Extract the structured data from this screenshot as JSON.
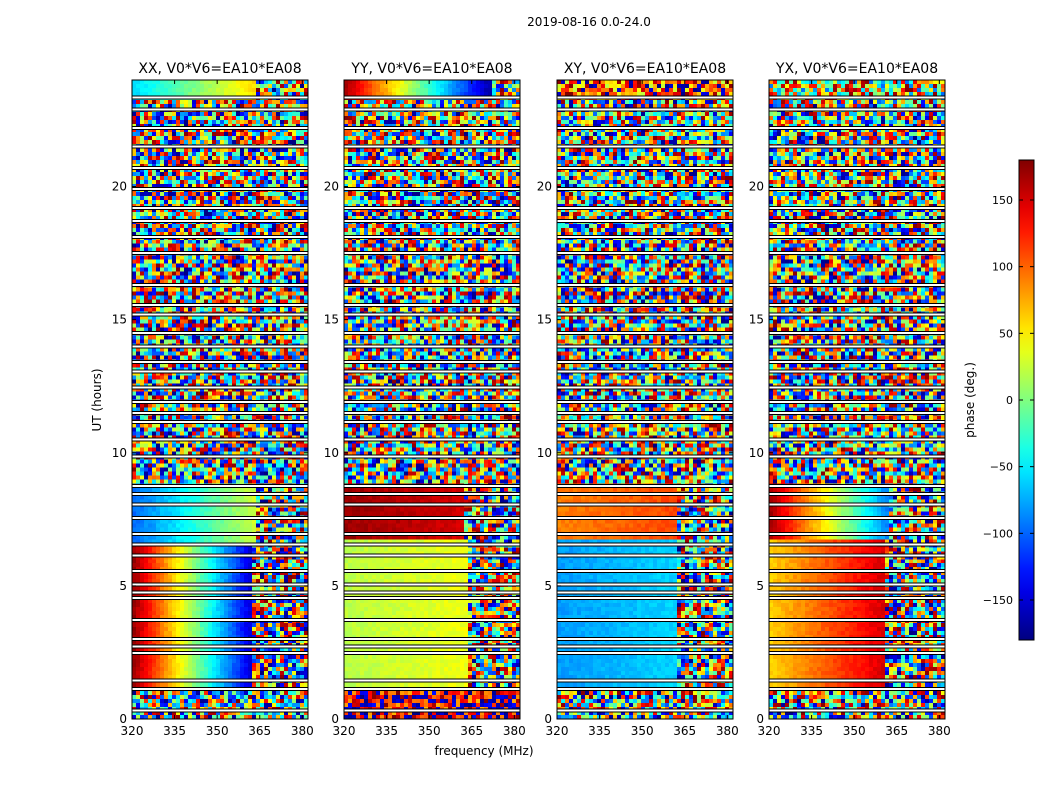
{
  "figure": {
    "suptitle": "2019-08-16 0.0-24.0",
    "xlabel": "frequency (MHz)",
    "ylabel": "UT (hours)"
  },
  "chart_data": {
    "type": "heatmap",
    "colormap": "jet",
    "x_range": [
      320,
      382
    ],
    "y_range": [
      0,
      24
    ],
    "x_ticks": [
      320,
      335,
      350,
      365,
      380
    ],
    "x_tick_labels": [
      "320",
      "335",
      "350",
      "365",
      "380"
    ],
    "y_ticks": [
      0,
      5,
      10,
      15,
      20
    ],
    "y_tick_labels": [
      "0",
      "5",
      "10",
      "15",
      "20"
    ],
    "colorbar": {
      "label": "phase (deg.)",
      "range": [
        -180,
        180
      ],
      "ticks": [
        -150,
        -100,
        -50,
        0,
        50,
        100,
        150
      ],
      "tick_labels": [
        "−150",
        "−100",
        "−50",
        "0",
        "50",
        "100",
        "150"
      ]
    },
    "flagged_hours": [
      0.32,
      1.12,
      1.45,
      2.48,
      2.72,
      3.0,
      3.72,
      4.55,
      4.75,
      5.05,
      5.55,
      6.15,
      6.55,
      6.95,
      7.55,
      8.05,
      8.45,
      8.75,
      9.85,
      10.5,
      11.15,
      11.5,
      11.9,
      12.45,
      13.05,
      13.4,
      14.0,
      14.5,
      15.2,
      15.55,
      16.3,
      17.5,
      18.1,
      18.7,
      19.2,
      19.9,
      20.7,
      21.5,
      22.2,
      22.9,
      23.35
    ],
    "panels": [
      {
        "title": "XX, V0*V6=EA10*EA08",
        "segments": [
          {
            "from": 0,
            "to": 1.2,
            "mode": "noise",
            "center": 0,
            "spread": 180
          },
          {
            "from": 1.2,
            "to": 6.6,
            "mode": "gradient",
            "phase_at_320": 175,
            "phase_at_362": -150,
            "noisy_from": 362
          },
          {
            "from": 6.6,
            "to": 8.9,
            "mode": "gradient",
            "phase_at_320": -100,
            "phase_at_362": 30,
            "noisy_from": 364
          },
          {
            "from": 8.9,
            "to": 23.3,
            "mode": "noise",
            "center": 0,
            "spread": 180
          },
          {
            "from": 23.3,
            "to": 24,
            "mode": "gradient",
            "phase_at_320": -60,
            "phase_at_362": 60,
            "noisy_from": 364
          }
        ]
      },
      {
        "title": "YY, V0*V6=EA10*EA08",
        "segments": [
          {
            "from": 0,
            "to": 1.2,
            "mode": "noise",
            "center": 150,
            "spread": 80
          },
          {
            "from": 1.2,
            "to": 6.8,
            "mode": "gradient",
            "phase_at_320": 20,
            "phase_at_362": 40,
            "noisy_from": 364
          },
          {
            "from": 6.8,
            "to": 8.9,
            "mode": "gradient",
            "phase_at_320": 170,
            "phase_at_362": 150,
            "noisy_from": 362
          },
          {
            "from": 8.9,
            "to": 23.3,
            "mode": "noise",
            "center": 0,
            "spread": 180
          },
          {
            "from": 23.3,
            "to": 24,
            "mode": "gradient",
            "phase_at_320": 170,
            "phase_at_362": -170,
            "noisy_from": 372
          }
        ]
      },
      {
        "title": "XY, V0*V6=EA10*EA08",
        "segments": [
          {
            "from": 0,
            "to": 1.2,
            "mode": "noise",
            "center": 0,
            "spread": 180
          },
          {
            "from": 1.2,
            "to": 6.8,
            "mode": "gradient",
            "phase_at_320": -80,
            "phase_at_362": -60,
            "noisy_from": 362
          },
          {
            "from": 6.8,
            "to": 8.9,
            "mode": "gradient",
            "phase_at_320": 90,
            "phase_at_362": 110,
            "noisy_from": 362
          },
          {
            "from": 8.9,
            "to": 23.3,
            "mode": "noise",
            "center": 0,
            "spread": 180
          },
          {
            "from": 23.3,
            "to": 24,
            "mode": "noise",
            "center": 120,
            "spread": 100
          }
        ]
      },
      {
        "title": "YX, V0*V6=EA10*EA08",
        "segments": [
          {
            "from": 0,
            "to": 1.2,
            "mode": "noise",
            "center": 0,
            "spread": 180
          },
          {
            "from": 1.2,
            "to": 6.8,
            "mode": "gradient",
            "phase_at_320": 60,
            "phase_at_362": 150,
            "noisy_from": 361
          },
          {
            "from": 6.8,
            "to": 8.9,
            "mode": "gradient",
            "phase_at_320": 170,
            "phase_at_362": -90,
            "noisy_from": 362
          },
          {
            "from": 8.9,
            "to": 23.3,
            "mode": "noise",
            "center": 0,
            "spread": 180
          },
          {
            "from": 23.3,
            "to": 24,
            "mode": "noise",
            "center": 40,
            "spread": 140
          }
        ]
      }
    ]
  }
}
